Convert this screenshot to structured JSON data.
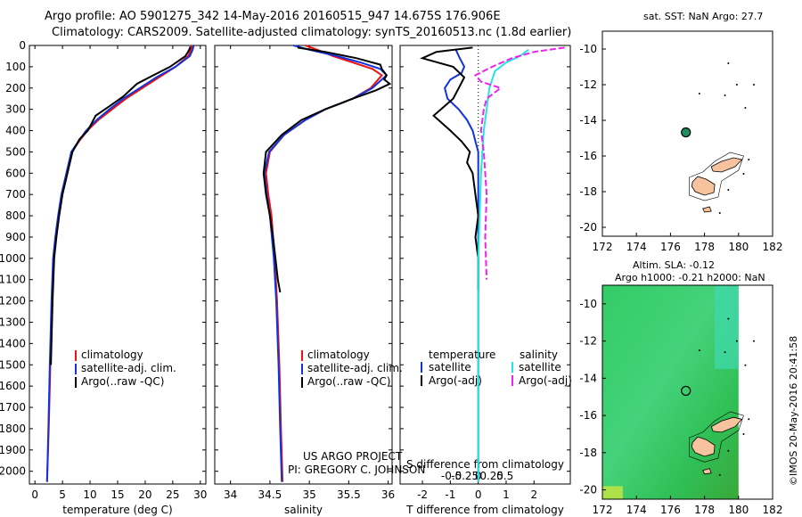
{
  "header": {
    "line1": "Argo profile: AO 5901275_342 14-May-2016 20160515_947 14.675S 176.906E",
    "line2": "Climatology: CARS2009. Satellite-adjusted climatology: synTS_20160513.nc (1.8d earlier)"
  },
  "colors": {
    "climatology": "#ee1111",
    "satellite": "#1133dd",
    "argo": "#000000",
    "sal_sat": "#22e5e5",
    "sal_argo": "#ee22ee",
    "land": "#f7c29e",
    "marker": "#1f8f5f"
  },
  "legends": {
    "temp": [
      "climatology",
      "satellite-adj. clim.",
      "Argo(..raw -QC)"
    ],
    "sal": [
      "climatology",
      "satellite-adj. clim.",
      "Argo(..raw -QC)"
    ],
    "diff": {
      "t_head": "temperature",
      "s_head": "salinity",
      "t_sat": "satellite",
      "t_argo": "Argo(-adj)",
      "s_sat": "satellite",
      "s_argo": "Argo(-adj)"
    }
  },
  "credits": {
    "project": "US ARGO PROJECT",
    "pi": "PI: GREGORY C. JOHNSON",
    "stamp": "©IMOS 20-May-2016 20:41:58"
  },
  "maps": {
    "sst_title": "sat. SST: NaN Argo: 27.7",
    "sla_title1": "Altim. SLA: -0.12",
    "sla_title2": "Argo h1000: -0.21 h2000: NaN",
    "lon_ticks": [
      "172",
      "174",
      "176",
      "178",
      "180",
      "182"
    ],
    "lat_ticks": [
      "-10",
      "-12",
      "-14",
      "-16",
      "-18",
      "-20"
    ],
    "lon_range": [
      172,
      182
    ],
    "lat_range": [
      -20.5,
      -9
    ],
    "float_position": {
      "lon": 176.906,
      "lat": -14.675
    }
  },
  "chart_data": [
    {
      "type": "line",
      "title": "",
      "xlabel": "temperature (deg C)",
      "ylabel": "",
      "xlim": [
        -1,
        31
      ],
      "ylim": [
        2060,
        0
      ],
      "xticks": [
        "0",
        "5",
        "10",
        "15",
        "20",
        "25",
        "30"
      ],
      "yticks": [
        "0",
        "100",
        "200",
        "300",
        "400",
        "500",
        "600",
        "700",
        "800",
        "900",
        "1000",
        "1100",
        "1200",
        "1300",
        "1400",
        "1500",
        "1600",
        "1700",
        "1800",
        "1900",
        "2000"
      ],
      "series": [
        {
          "name": "climatology",
          "color": "#ee1111",
          "x": [
            28.5,
            28.3,
            27.8,
            25.5,
            22.5,
            19.5,
            16.5,
            14.0,
            11.5,
            9.5,
            8.0,
            6.7,
            5.8,
            4.9,
            4.3,
            3.8,
            3.4,
            3.1,
            2.8,
            2.5,
            2.2
          ],
          "y": [
            0,
            20,
            50,
            100,
            150,
            200,
            250,
            300,
            350,
            400,
            450,
            500,
            600,
            700,
            800,
            900,
            1000,
            1200,
            1500,
            1800,
            2050
          ]
        },
        {
          "name": "satellite-adj. clim.",
          "color": "#1133dd",
          "x": [
            28.8,
            28.6,
            28.1,
            25.5,
            22.0,
            19.0,
            16.0,
            13.5,
            11.2,
            9.3,
            7.9,
            6.6,
            5.7,
            4.8,
            4.2,
            3.7,
            3.3,
            3.0,
            2.7,
            2.45,
            2.2
          ],
          "y": [
            0,
            20,
            50,
            100,
            150,
            200,
            250,
            300,
            350,
            400,
            450,
            500,
            600,
            700,
            800,
            900,
            1000,
            1200,
            1500,
            1800,
            2050
          ]
        },
        {
          "name": "Argo(..raw -QC)",
          "color": "#000000",
          "x": [
            28.2,
            28.0,
            27.3,
            24.5,
            21.5,
            18.5,
            16.0,
            13.8,
            11.0,
            9.6,
            8.1,
            6.8,
            5.9,
            5.0,
            4.4,
            3.9,
            3.5,
            3.2,
            2.9
          ],
          "y": [
            5,
            20,
            50,
            100,
            140,
            180,
            240,
            280,
            330,
            400,
            440,
            500,
            600,
            700,
            800,
            900,
            1000,
            1200,
            1500
          ]
        }
      ]
    },
    {
      "type": "line",
      "title": "",
      "xlabel": "salinity",
      "ylabel": "",
      "xlim": [
        33.8,
        36.05
      ],
      "ylim": [
        2060,
        0
      ],
      "xticks": [
        "34",
        "34.5",
        "35",
        "35.5",
        "36"
      ],
      "series": [
        {
          "name": "climatology",
          "color": "#ee1111",
          "x": [
            34.95,
            35.1,
            35.3,
            35.55,
            35.8,
            35.92,
            35.78,
            35.55,
            35.2,
            34.95,
            34.68,
            34.5,
            34.45,
            34.48,
            34.52,
            34.56,
            34.59,
            34.62,
            34.64,
            34.66
          ],
          "y": [
            0,
            20,
            50,
            80,
            110,
            140,
            200,
            250,
            300,
            350,
            420,
            500,
            600,
            700,
            800,
            1000,
            1200,
            1500,
            1800,
            2050
          ]
        },
        {
          "name": "satellite-adj. clim.",
          "color": "#1133dd",
          "x": [
            34.8,
            35.0,
            35.35,
            35.65,
            35.9,
            35.98,
            35.8,
            35.55,
            35.2,
            34.95,
            34.68,
            34.49,
            34.43,
            34.46,
            34.5,
            34.55,
            34.58,
            34.61,
            34.63,
            34.65
          ],
          "y": [
            0,
            20,
            50,
            80,
            110,
            140,
            200,
            250,
            300,
            350,
            420,
            500,
            600,
            700,
            800,
            1000,
            1200,
            1500,
            1800,
            2050
          ]
        },
        {
          "name": "Argo(..raw -QC)",
          "color": "#000000",
          "x": [
            34.85,
            35.2,
            35.6,
            35.9,
            35.92,
            35.98,
            35.95,
            36.02,
            35.85,
            35.55,
            35.2,
            34.9,
            34.65,
            34.45,
            34.42,
            34.45,
            34.5,
            34.54,
            34.57,
            34.6,
            34.63
          ],
          "y": [
            10,
            30,
            60,
            90,
            110,
            140,
            160,
            180,
            210,
            250,
            300,
            350,
            420,
            500,
            600,
            700,
            800,
            900,
            1000,
            1100,
            1160
          ]
        }
      ]
    },
    {
      "type": "line",
      "title": "",
      "xlabel": "T difference from climatology",
      "xlabel2": "S difference from climatology",
      "ylabel": "",
      "xlim": [
        -2.8,
        3.3
      ],
      "ylim": [
        2060,
        0
      ],
      "xticks_T": [
        "-2",
        "-1",
        "0",
        "1",
        "2"
      ],
      "xticks_S": [
        "-0.5",
        "-0.25",
        "0",
        "0.25",
        "0.5"
      ],
      "series": [
        {
          "name": "T satellite",
          "color": "#1133dd",
          "x": [
            -0.8,
            -0.7,
            -0.5,
            -0.6,
            -1.0,
            -1.2,
            -1.1,
            -0.7,
            -0.4,
            -0.2,
            -0.1,
            0.0,
            0.0,
            0.0,
            0.0,
            0.0
          ],
          "y": [
            20,
            50,
            100,
            130,
            160,
            200,
            250,
            300,
            350,
            400,
            450,
            500,
            600,
            800,
            1200,
            2050
          ]
        },
        {
          "name": "T Argo(-adj)",
          "color": "#000000",
          "x": [
            -0.2,
            -1.5,
            -2.0,
            -0.9,
            -0.5,
            -0.7,
            -0.9,
            -1.6,
            -1.0,
            -0.6,
            -0.3,
            -0.4,
            -0.2,
            -0.1,
            0.0,
            -0.1,
            0.0,
            0.0
          ],
          "y": [
            10,
            30,
            60,
            100,
            150,
            200,
            250,
            330,
            400,
            450,
            500,
            550,
            600,
            700,
            800,
            900,
            1000,
            1150
          ]
        },
        {
          "name": "S satellite",
          "color": "#22e5e5",
          "x": [
            1.8,
            1.5,
            1.0,
            0.6,
            0.4,
            0.3,
            0.2,
            0.1,
            0.0,
            0.0,
            0.0
          ],
          "y": [
            20,
            50,
            80,
            120,
            200,
            300,
            400,
            600,
            1000,
            1500,
            2050
          ]
        },
        {
          "name": "S Argo(-adj)",
          "color": "#ee22ee",
          "x": [
            3.1,
            2.0,
            1.2,
            0.5,
            -0.1,
            0.1,
            0.8,
            0.3,
            0.2,
            0.1,
            0.2,
            0.3,
            0.25,
            0.3
          ],
          "y": [
            10,
            30,
            60,
            100,
            140,
            170,
            200,
            250,
            300,
            400,
            500,
            700,
            900,
            1100
          ]
        }
      ]
    }
  ]
}
